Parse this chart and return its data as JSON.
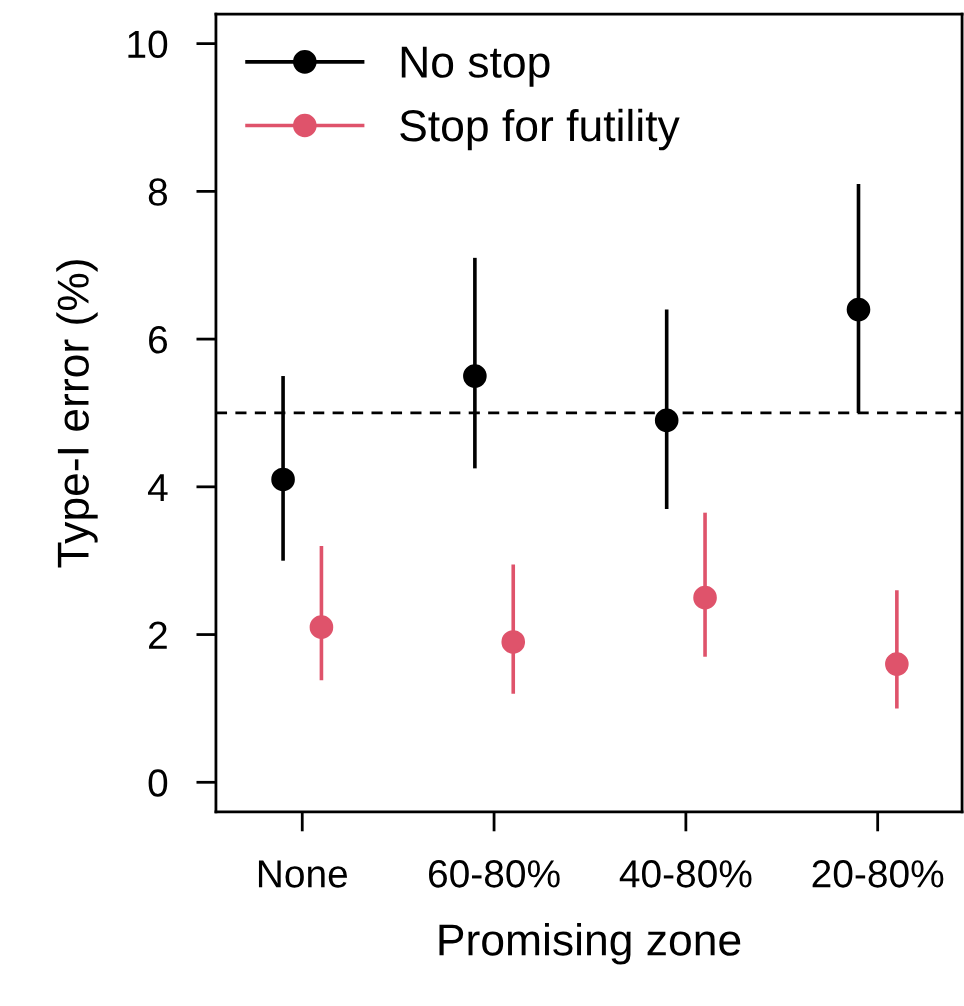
{
  "chart_data": {
    "type": "scatter",
    "xlabel": "Promising zone",
    "ylabel": "Type-I error (%)",
    "categories": [
      "None",
      "60-80%",
      "40-80%",
      "20-80%"
    ],
    "series": [
      {
        "name": "No stop",
        "color": "#000000",
        "values": [
          4.1,
          5.5,
          4.9,
          6.4
        ],
        "errors": [
          [
            3.0,
            5.5
          ],
          [
            4.25,
            7.1
          ],
          [
            3.7,
            6.4
          ],
          [
            5.0,
            8.1
          ]
        ]
      },
      {
        "name": "Stop for futility",
        "color": "#df536b",
        "values": [
          2.1,
          1.9,
          2.5,
          1.6
        ],
        "errors": [
          [
            1.38,
            3.2
          ],
          [
            1.2,
            2.95
          ],
          [
            1.7,
            3.65
          ],
          [
            1.0,
            2.6
          ]
        ]
      }
    ],
    "ylim": [
      -0.4,
      10.4
    ],
    "yticks": [
      0,
      2,
      4,
      6,
      8,
      10
    ],
    "ref_lines": [
      {
        "axis": "y",
        "value": 5,
        "line_style": "dashed",
        "color": "#000000"
      }
    ],
    "marker": "circle",
    "grid": false,
    "legend": "top left"
  }
}
